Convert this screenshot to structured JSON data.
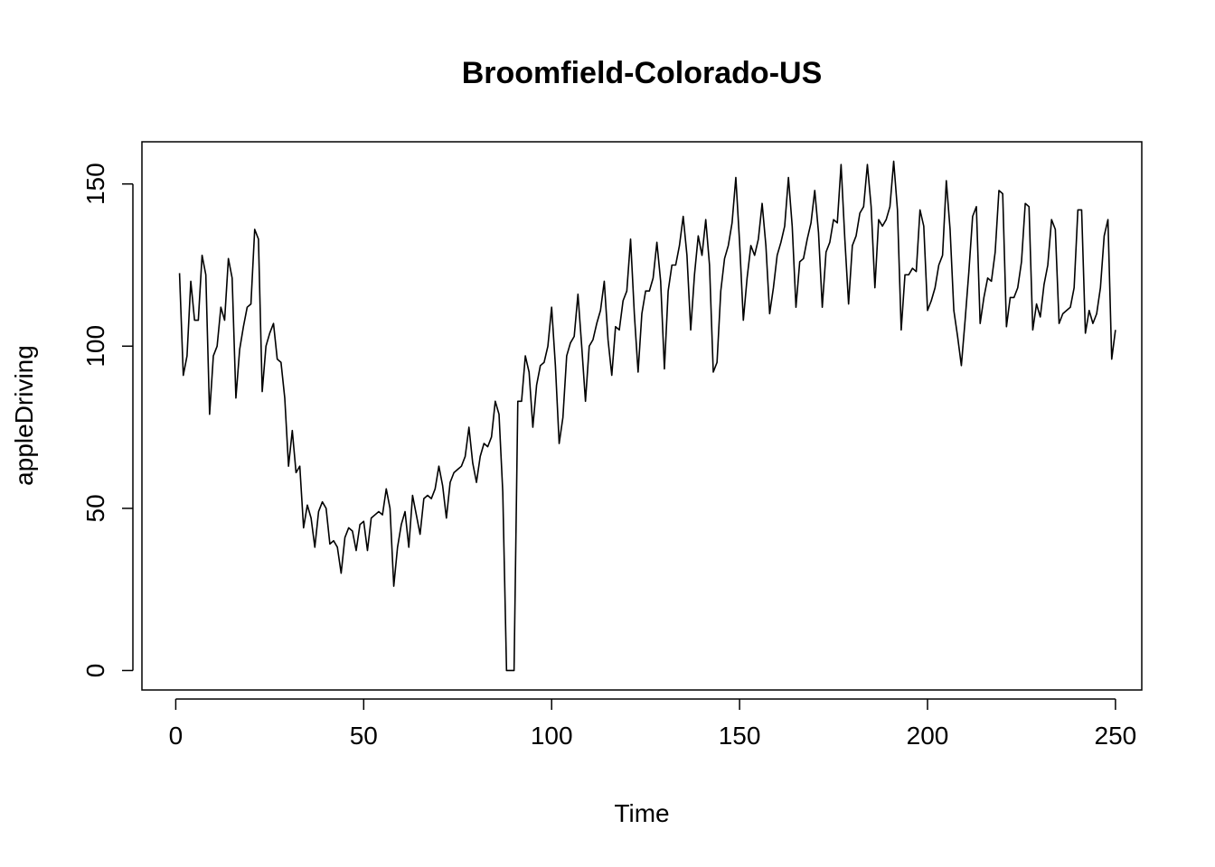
{
  "chart_data": {
    "type": "line",
    "title": "Broomfield-Colorado-US",
    "xlabel": "Time",
    "ylabel": "appleDriving",
    "xlim": [
      -9,
      257
    ],
    "ylim": [
      -6,
      163
    ],
    "xticks": [
      0,
      50,
      100,
      150,
      200,
      250
    ],
    "yticks": [
      0,
      50,
      100,
      150
    ],
    "grid": false,
    "series": [
      {
        "values": [
          122.5,
          91,
          97,
          120,
          108,
          108,
          128,
          122,
          79,
          97,
          100,
          112,
          108,
          127,
          121,
          84,
          99,
          106,
          112,
          113,
          136,
          133,
          86,
          100,
          104,
          107,
          96,
          95,
          84,
          63,
          74,
          61,
          63,
          44,
          51,
          47,
          38,
          49,
          52,
          50,
          39,
          40,
          38,
          30,
          41,
          44,
          43,
          37,
          45,
          46,
          37,
          47,
          48,
          49,
          48,
          56,
          50,
          26,
          38,
          45,
          49,
          38,
          54,
          48,
          42,
          53,
          54,
          53,
          56,
          63,
          57,
          47,
          58,
          61,
          62,
          63,
          66,
          75,
          64,
          58,
          66,
          70,
          69,
          72,
          83,
          79,
          55,
          0,
          0,
          0,
          83,
          83,
          97,
          92,
          75,
          88,
          94,
          95,
          100,
          112,
          94,
          70,
          78,
          97,
          101,
          103,
          116,
          100,
          83,
          100,
          102,
          107,
          111,
          120,
          102,
          91,
          106,
          105,
          114,
          117,
          133,
          110,
          92,
          110,
          117,
          117,
          121,
          132,
          120,
          93,
          117,
          125,
          125,
          131,
          140,
          128,
          105,
          122,
          134,
          128,
          139,
          125,
          92,
          95,
          117,
          127,
          131,
          138,
          152,
          132,
          108,
          121,
          131,
          128,
          133,
          144,
          131,
          110,
          118,
          128,
          132,
          137,
          152,
          137,
          112,
          126,
          127,
          133,
          138,
          148,
          135,
          112,
          129,
          132,
          139,
          138,
          156,
          133,
          113,
          131,
          134,
          141,
          143,
          156,
          143,
          118,
          139,
          137,
          139,
          143,
          157,
          142,
          105,
          122,
          122,
          124,
          123,
          142,
          137,
          111,
          114,
          118,
          125,
          128,
          151,
          136,
          111,
          103,
          94,
          108,
          123,
          140,
          143,
          107,
          115,
          121,
          120,
          129,
          148,
          147,
          106,
          115,
          115,
          118,
          126,
          144,
          143,
          105,
          113,
          109,
          119,
          125,
          139,
          136,
          107,
          110,
          111,
          112,
          118,
          142,
          142,
          104,
          111,
          107,
          110,
          118,
          134,
          139,
          96,
          105
        ]
      }
    ]
  }
}
